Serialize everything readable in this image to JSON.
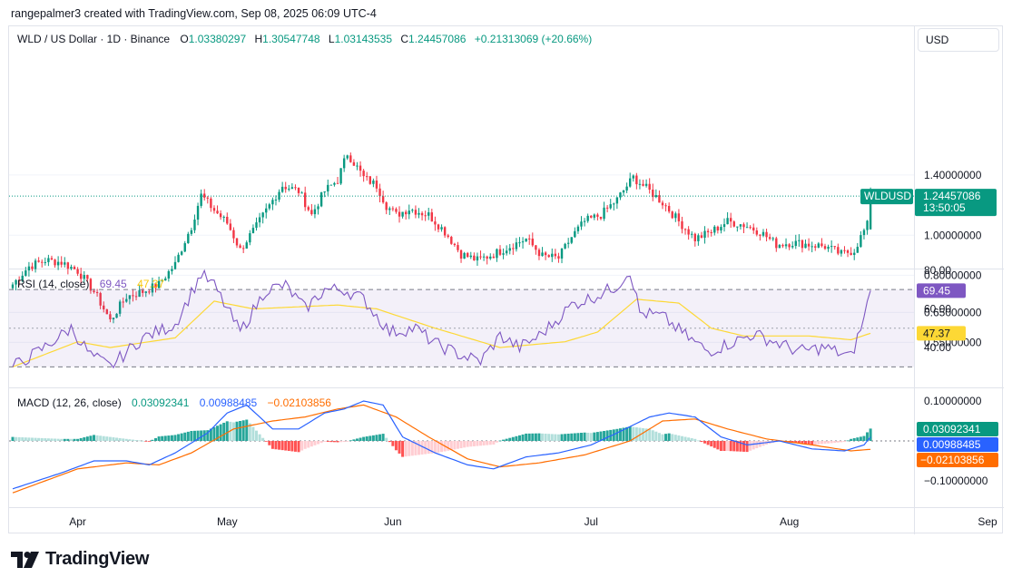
{
  "header": {
    "credit": "rangepalmer3 created with TradingView.com, Sep 08, 2025 06:09 UTC-4",
    "symbol": "WLD / US Dollar · 1D · Binance",
    "o_label": "O",
    "o_value": "1.03380297",
    "h_label": "H",
    "h_value": "1.30547748",
    "l_label": "L",
    "l_value": "1.03143535",
    "c_label": "C",
    "c_value": "1.24457086",
    "change": "+0.21313069 (+20.66%)"
  },
  "currency_button": "USD",
  "price_axis": {
    "ticks": [
      "1.40000000",
      "1.00000000",
      "0.80000000",
      "0.65000000",
      "0.55000000"
    ],
    "ticks_values": [
      1.4,
      1.0,
      0.8,
      0.65,
      0.55
    ],
    "last_label": "WLDUSD",
    "last_price": "1.24457086",
    "countdown": "13:50:05"
  },
  "rsi": {
    "title": "RSI (14, close)",
    "value": "69.45",
    "ma_value": "47.37",
    "ticks": [
      "80.00",
      "60.00",
      "40.00"
    ],
    "ticks_values": [
      80,
      60,
      40
    ],
    "upper_band": 70,
    "lower_band": 30
  },
  "macd": {
    "title": "MACD (12, 26, close)",
    "hist_value": "0.03092341",
    "macd_value": "0.00988485",
    "signal_value": "−0.02103856",
    "ticks": [
      "0.10000000",
      "−0.10000000"
    ],
    "ticks_values": [
      0.1,
      -0.1
    ]
  },
  "time_axis": {
    "labels": [
      "Apr",
      "May",
      "Jun",
      "Jul",
      "Aug",
      "Sep"
    ],
    "label_days": [
      20,
      66,
      117,
      178,
      239,
      300
    ]
  },
  "colors": {
    "up": "#089981",
    "down": "#f23645",
    "rsi_line": "#7e57c2",
    "rsi_ma": "#fdd835",
    "rsi_band": "#7e57c2",
    "macd_line": "#2962ff",
    "signal_line": "#ff6d00",
    "hist_up_strong": "#26a69a",
    "hist_up_weak": "#b2dfdb",
    "hist_down_strong": "#ff5252",
    "hist_down_weak": "#ffcdd2",
    "text": "#131722",
    "grid": "#f0f3fa"
  },
  "logo_text": "TradingView",
  "chart_data": [
    {
      "type": "candlestick",
      "title": "WLD / US Dollar · 1D · Binance",
      "x_unit": "days since Mar 5 2025 (approx)",
      "y_scale": "log",
      "ylim": [
        0.5,
        1.7
      ],
      "close_key_points": [
        [
          0,
          0.76
        ],
        [
          5,
          0.84
        ],
        [
          10,
          0.87
        ],
        [
          15,
          0.86
        ],
        [
          20,
          0.82
        ],
        [
          25,
          0.73
        ],
        [
          30,
          0.62
        ],
        [
          35,
          0.71
        ],
        [
          40,
          0.73
        ],
        [
          45,
          0.76
        ],
        [
          50,
          0.85
        ],
        [
          55,
          1.05
        ],
        [
          58,
          1.25
        ],
        [
          62,
          1.15
        ],
        [
          66,
          1.07
        ],
        [
          70,
          0.92
        ],
        [
          75,
          1.05
        ],
        [
          79,
          1.18
        ],
        [
          83,
          1.32
        ],
        [
          88,
          1.28
        ],
        [
          92,
          1.12
        ],
        [
          96,
          1.28
        ],
        [
          100,
          1.36
        ],
        [
          103,
          1.58
        ],
        [
          108,
          1.38
        ],
        [
          112,
          1.32
        ],
        [
          115,
          1.18
        ],
        [
          118,
          1.12
        ],
        [
          122,
          1.16
        ],
        [
          128,
          1.12
        ],
        [
          133,
          1.02
        ],
        [
          138,
          0.9
        ],
        [
          143,
          0.87
        ],
        [
          148,
          0.9
        ],
        [
          153,
          0.94
        ],
        [
          158,
          0.98
        ],
        [
          163,
          0.89
        ],
        [
          168,
          0.88
        ],
        [
          172,
          0.99
        ],
        [
          176,
          1.08
        ],
        [
          181,
          1.12
        ],
        [
          186,
          1.22
        ],
        [
          191,
          1.38
        ],
        [
          196,
          1.28
        ],
        [
          200,
          1.2
        ],
        [
          205,
          1.08
        ],
        [
          210,
          0.98
        ],
        [
          215,
          1.02
        ],
        [
          220,
          1.08
        ],
        [
          225,
          1.06
        ],
        [
          230,
          1.02
        ],
        [
          235,
          0.95
        ],
        [
          240,
          0.96
        ],
        [
          245,
          0.95
        ],
        [
          250,
          0.94
        ],
        [
          255,
          0.9
        ],
        [
          259,
          0.92
        ],
        [
          263,
          1.06
        ],
        [
          264,
          1.24
        ]
      ]
    },
    {
      "type": "line",
      "title": "RSI (14, close)",
      "series": [
        {
          "name": "RSI",
          "values_key_points": [
            [
              0,
              30
            ],
            [
              8,
              38
            ],
            [
              18,
              50
            ],
            [
              24,
              36
            ],
            [
              30,
              30
            ],
            [
              40,
              45
            ],
            [
              50,
              52
            ],
            [
              58,
              78
            ],
            [
              62,
              72
            ],
            [
              70,
              48
            ],
            [
              78,
              70
            ],
            [
              84,
              72
            ],
            [
              90,
              60
            ],
            [
              96,
              70
            ],
            [
              102,
              70
            ],
            [
              108,
              65
            ],
            [
              116,
              48
            ],
            [
              124,
              50
            ],
            [
              130,
              42
            ],
            [
              138,
              36
            ],
            [
              144,
              33
            ],
            [
              150,
              46
            ],
            [
              156,
              40
            ],
            [
              162,
              46
            ],
            [
              166,
              52
            ],
            [
              172,
              62
            ],
            [
              180,
              67
            ],
            [
              186,
              72
            ],
            [
              190,
              80
            ],
            [
              193,
              58
            ],
            [
              200,
              56
            ],
            [
              208,
              45
            ],
            [
              214,
              38
            ],
            [
              222,
              43
            ],
            [
              228,
              47
            ],
            [
              236,
              42
            ],
            [
              242,
              38
            ],
            [
              250,
              40
            ],
            [
              258,
              35
            ],
            [
              262,
              55
            ],
            [
              264,
              69.45
            ]
          ]
        },
        {
          "name": "RSI-based MA",
          "values_key_points": [
            [
              0,
              30
            ],
            [
              20,
              43
            ],
            [
              30,
              40
            ],
            [
              50,
              45
            ],
            [
              62,
              64
            ],
            [
              74,
              60
            ],
            [
              100,
              62
            ],
            [
              112,
              60
            ],
            [
              130,
              50
            ],
            [
              150,
              40
            ],
            [
              170,
              43
            ],
            [
              180,
              48
            ],
            [
              192,
              65
            ],
            [
              205,
              63
            ],
            [
              215,
              50
            ],
            [
              225,
              46
            ],
            [
              245,
              46
            ],
            [
              258,
              44
            ],
            [
              264,
              47.37
            ]
          ]
        }
      ],
      "ylim": [
        25,
        83
      ]
    },
    {
      "type": "line",
      "title": "MACD (12, 26, close)",
      "series": [
        {
          "name": "MACD",
          "values_key_points": [
            [
              0,
              -0.12
            ],
            [
              15,
              -0.08
            ],
            [
              25,
              -0.05
            ],
            [
              35,
              -0.05
            ],
            [
              42,
              -0.06
            ],
            [
              50,
              -0.03
            ],
            [
              60,
              0.02
            ],
            [
              66,
              0.07
            ],
            [
              72,
              0.09
            ],
            [
              80,
              0.03
            ],
            [
              88,
              0.03
            ],
            [
              96,
              0.07
            ],
            [
              102,
              0.08
            ],
            [
              108,
              0.1
            ],
            [
              114,
              0.09
            ],
            [
              120,
              0.01
            ],
            [
              130,
              -0.03
            ],
            [
              140,
              -0.06
            ],
            [
              148,
              -0.07
            ],
            [
              158,
              -0.04
            ],
            [
              168,
              -0.03
            ],
            [
              178,
              -0.01
            ],
            [
              186,
              0.02
            ],
            [
              196,
              0.06
            ],
            [
              202,
              0.07
            ],
            [
              210,
              0.06
            ],
            [
              218,
              0.01
            ],
            [
              226,
              -0.01
            ],
            [
              236,
              0.0
            ],
            [
              246,
              -0.02
            ],
            [
              256,
              -0.025
            ],
            [
              262,
              -0.01
            ],
            [
              264,
              0.00988485
            ]
          ]
        },
        {
          "name": "Signal",
          "values_key_points": [
            [
              0,
              -0.13
            ],
            [
              20,
              -0.07
            ],
            [
              35,
              -0.055
            ],
            [
              45,
              -0.06
            ],
            [
              55,
              -0.03
            ],
            [
              68,
              0.03
            ],
            [
              80,
              0.05
            ],
            [
              90,
              0.06
            ],
            [
              100,
              0.08
            ],
            [
              108,
              0.09
            ],
            [
              118,
              0.06
            ],
            [
              128,
              0.01
            ],
            [
              140,
              -0.045
            ],
            [
              150,
              -0.065
            ],
            [
              162,
              -0.055
            ],
            [
              176,
              -0.035
            ],
            [
              190,
              0.0
            ],
            [
              200,
              0.05
            ],
            [
              210,
              0.055
            ],
            [
              220,
              0.03
            ],
            [
              232,
              0.005
            ],
            [
              246,
              -0.01
            ],
            [
              258,
              -0.025
            ],
            [
              264,
              -0.02103856
            ]
          ]
        }
      ],
      "ylim": [
        -0.14,
        0.115
      ]
    }
  ]
}
